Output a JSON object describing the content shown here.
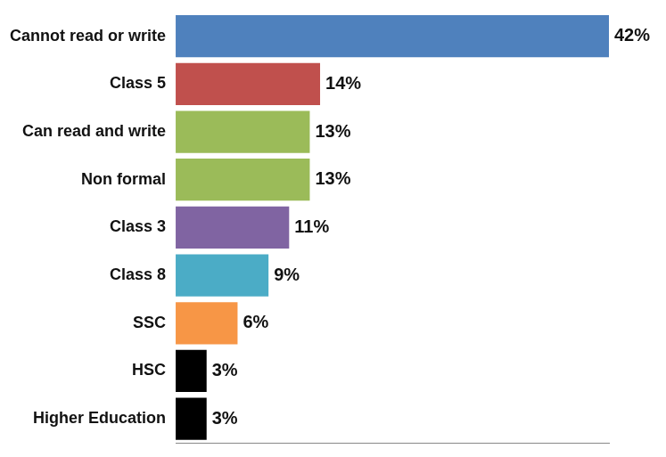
{
  "chart_data": {
    "type": "bar",
    "orientation": "horizontal",
    "categories": [
      "Cannot read or write",
      "Class 5",
      "Can read and write",
      "Non formal",
      "Class 3",
      "Class 8",
      "SSC",
      "HSC",
      "Higher Education"
    ],
    "values": [
      42,
      14,
      13,
      13,
      11,
      9,
      6,
      3,
      3
    ],
    "value_labels": [
      "42%",
      "14%",
      "13%",
      "13%",
      "11%",
      "9%",
      "6%",
      "3%",
      "3%"
    ],
    "colors": [
      "#4f81bd",
      "#c0504d",
      "#9bbb59",
      "#9bbb59",
      "#8064a2",
      "#4bacc6",
      "#f79646",
      "#000000",
      "#000000"
    ],
    "xlim": [
      0,
      42
    ],
    "data_labels": true,
    "tick_labels": "y",
    "grid": false
  }
}
